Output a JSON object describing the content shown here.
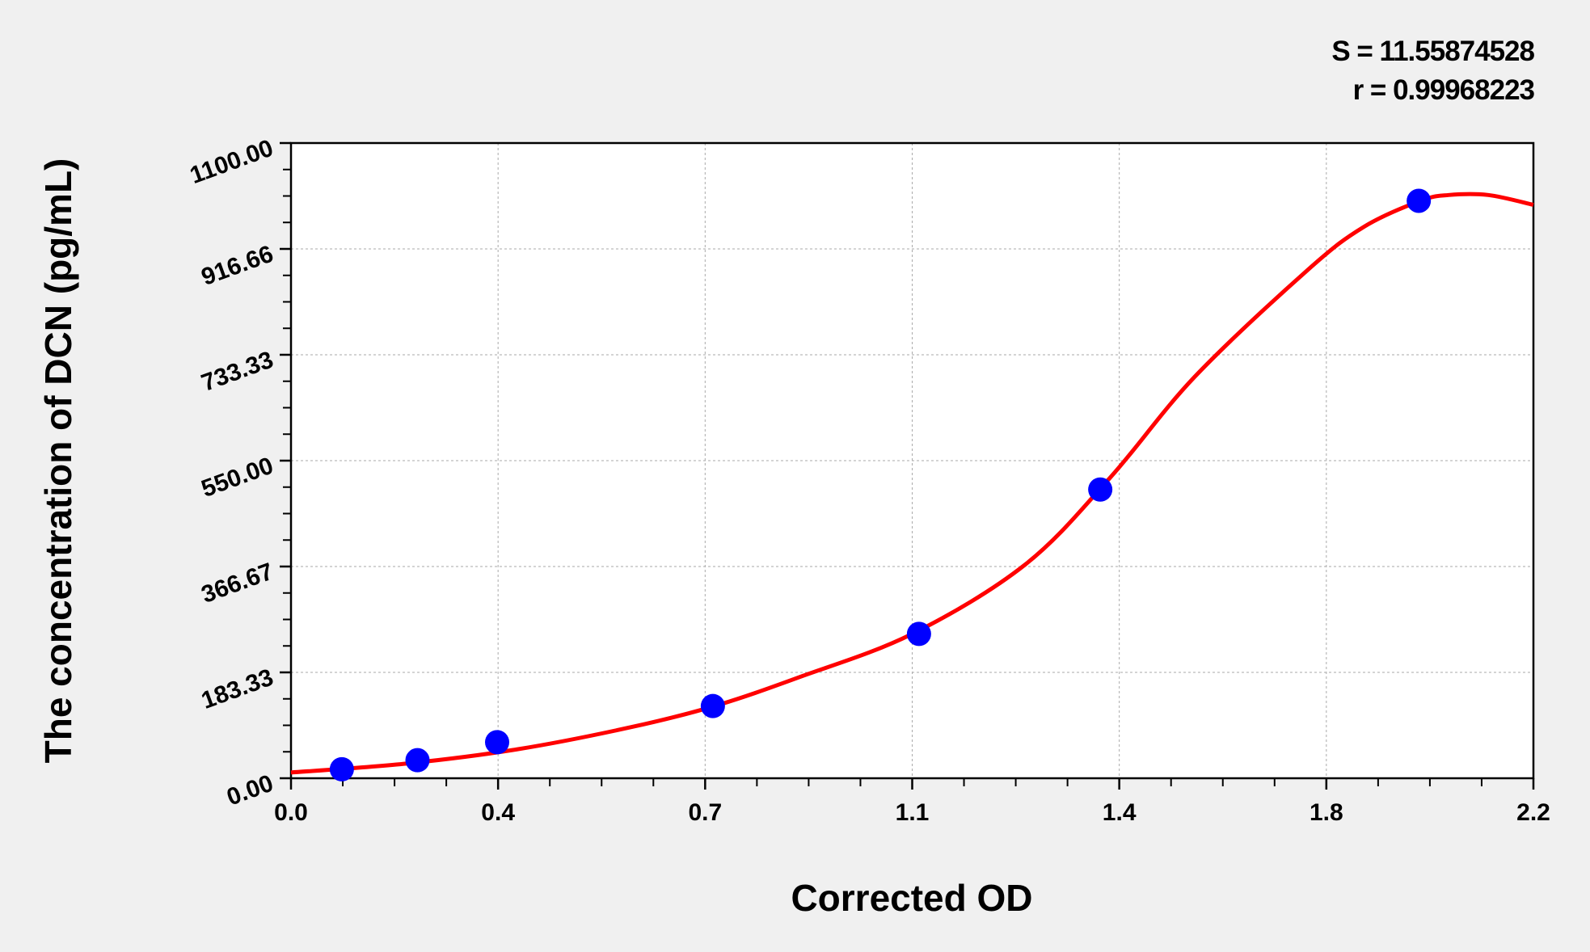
{
  "chart_data": {
    "type": "scatter",
    "title": "",
    "xlabel": "Corrected OD",
    "ylabel": "The concentration of DCN (pg/mL)",
    "xlim": [
      0,
      2.2
    ],
    "ylim": [
      0,
      1100
    ],
    "x_tick_labels": [
      "0.0",
      "0.4",
      "0.7",
      "1.1",
      "1.4",
      "1.8",
      "2.2"
    ],
    "y_tick_labels": [
      "0.00",
      "183.33",
      "366.67",
      "550.00",
      "733.33",
      "916.66",
      "1100.00"
    ],
    "grid": true,
    "stats": {
      "s": "S = 11.55874528",
      "r": "r = 0.99968223"
    },
    "colors": {
      "points": "#0000ff",
      "curve": "#ff0000",
      "background": "#f0f0f0",
      "plot": "#ffffff"
    },
    "series": [
      {
        "type": "scatter",
        "x": [
          0.09,
          0.224,
          0.365,
          0.747,
          1.112,
          1.433,
          1.997
        ],
        "y": [
          15.6,
          31.25,
          62.5,
          125,
          250,
          500,
          1000
        ]
      },
      {
        "type": "line",
        "x": [
          0,
          0.2,
          0.4,
          0.6,
          0.75,
          0.9,
          1.1,
          1.3,
          1.45,
          1.6,
          1.8,
          1.9,
          2.0,
          2.05,
          2.12,
          2.2
        ],
        "y": [
          10,
          25,
          50,
          88,
          125,
          175,
          250,
          370,
          520,
          695,
          880,
          955,
          1000,
          1010,
          1010,
          993
        ]
      }
    ]
  }
}
